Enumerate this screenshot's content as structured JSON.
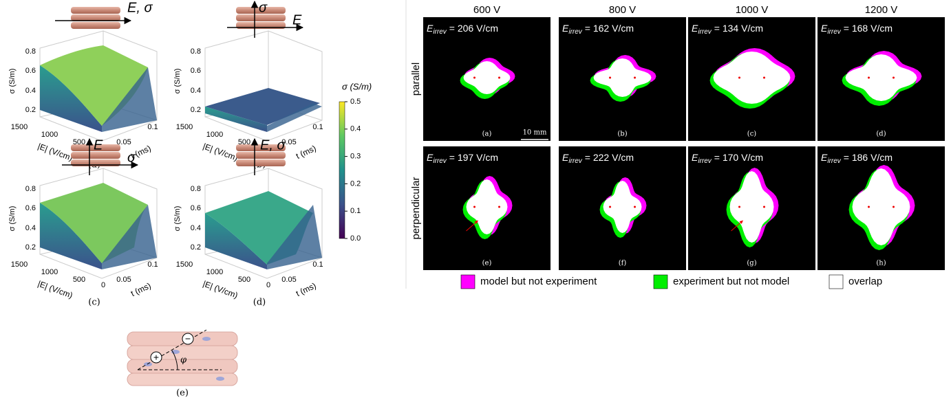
{
  "left_figure": {
    "subplots": [
      {
        "label": "(a)",
        "arrow_labels": [
          "E, σ"
        ],
        "y_axis_label": "σ (S/m)",
        "y_ticks": [
          "0.8",
          "0.6",
          "0.4",
          "0.2"
        ],
        "e_ticks": [
          "1500",
          "1000",
          "500",
          "0"
        ],
        "t_ticks": [
          "0.05",
          "0.1"
        ],
        "e_axis_label": "|E| (V/cm)",
        "t_axis_label": "t (ms)"
      },
      {
        "label": "(b)",
        "arrow_labels": [
          "σ",
          "E"
        ],
        "y_axis_label": "σ (S/m)",
        "y_ticks": [
          "0.8",
          "0.6",
          "0.4",
          "0.2"
        ],
        "e_ticks": [
          "1500",
          "1000",
          "500",
          "0"
        ],
        "t_ticks": [
          "0.05",
          "0.1"
        ],
        "e_axis_label": "|E| (V/cm)",
        "t_axis_label": "t (ms)"
      },
      {
        "label": "(c)",
        "arrow_labels": [
          "E",
          "σ"
        ],
        "y_axis_label": "σ (S/m)",
        "y_ticks": [
          "0.8",
          "0.6",
          "0.4",
          "0.2"
        ],
        "e_ticks": [
          "1500",
          "1000",
          "500",
          "0"
        ],
        "t_ticks": [
          "0.05",
          "0.1"
        ],
        "e_axis_label": "|E| (V/cm)",
        "t_axis_label": "t (ms)"
      },
      {
        "label": "(d)",
        "arrow_labels": [
          "E, σ"
        ],
        "y_axis_label": "σ (S/m)",
        "y_ticks": [
          "0.8",
          "0.6",
          "0.4",
          "0.2"
        ],
        "e_ticks": [
          "1500",
          "1000",
          "500",
          "0"
        ],
        "t_ticks": [
          "0.05",
          "0.1"
        ],
        "e_axis_label": "|E| (V/cm)",
        "t_axis_label": "t (ms)"
      }
    ],
    "colorbar": {
      "label": "σ (S/m)",
      "ticks": [
        "0.5",
        "0.4",
        "0.3",
        "0.2",
        "0.1",
        "0.0"
      ]
    },
    "diagram": {
      "label": "(e)",
      "angle_label": "φ",
      "positive": "+",
      "negative": "−"
    }
  },
  "right_figure": {
    "columns": [
      "600 V",
      "800 V",
      "1000 V",
      "1200 V"
    ],
    "rows": [
      "parallel",
      "perpendicular"
    ],
    "threshold_symbol": "E",
    "threshold_subscript": "irrev",
    "panels": [
      {
        "label": "(a)",
        "threshold_value": "= 206 V/cm"
      },
      {
        "label": "(b)",
        "threshold_value": "= 162 V/cm"
      },
      {
        "label": "(c)",
        "threshold_value": "= 134 V/cm"
      },
      {
        "label": "(d)",
        "threshold_value": "= 168 V/cm"
      },
      {
        "label": "(e)",
        "threshold_value": "= 197 V/cm"
      },
      {
        "label": "(f)",
        "threshold_value": "= 222 V/cm"
      },
      {
        "label": "(g)",
        "threshold_value": "= 170 V/cm"
      },
      {
        "label": "(h)",
        "threshold_value": "= 186 V/cm"
      }
    ],
    "scale_bar": "10 mm",
    "legend": [
      {
        "label": "model but not experiment",
        "color": "#ff00ff"
      },
      {
        "label": "experiment but not model",
        "color": "#00ee00"
      },
      {
        "label": "overlap",
        "color": "#ffffff"
      }
    ]
  }
}
